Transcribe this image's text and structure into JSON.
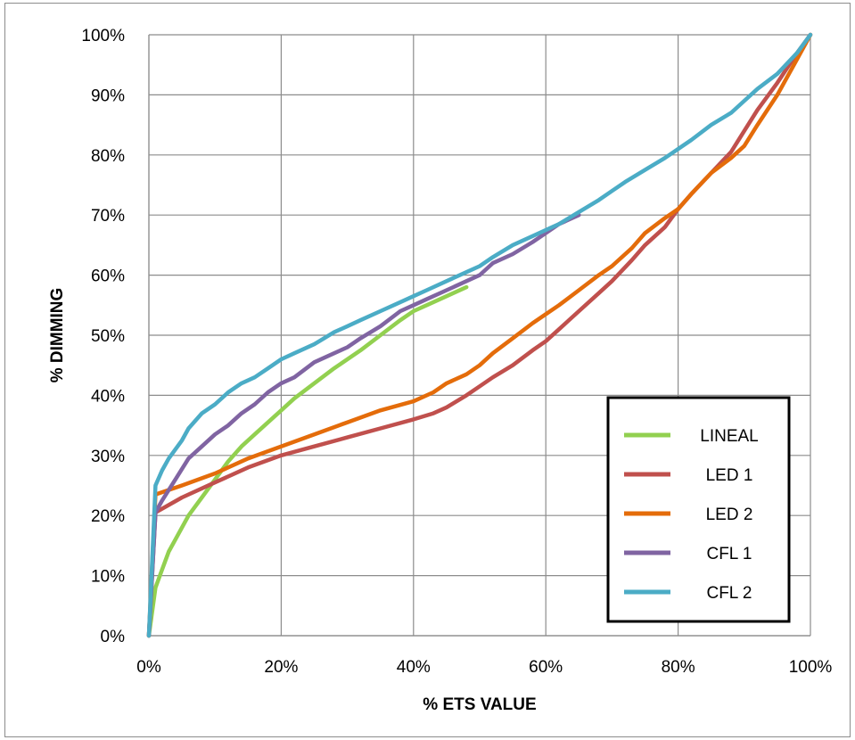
{
  "chart_data": {
    "type": "line",
    "title": "",
    "xlabel": "% ETS VALUE",
    "ylabel": "% DIMMING",
    "xlim": [
      0,
      100
    ],
    "ylim": [
      0,
      100
    ],
    "x_ticks": [
      "0%",
      "20%",
      "40%",
      "60%",
      "80%",
      "100%"
    ],
    "y_ticks": [
      "0%",
      "10%",
      "20%",
      "30%",
      "40%",
      "50%",
      "60%",
      "70%",
      "80%",
      "90%",
      "100%"
    ],
    "grid": true,
    "legend_position": "bottom-right",
    "series": [
      {
        "name": "LINEAL",
        "color": "#92d050",
        "x": [
          0,
          1,
          2,
          3,
          4,
          5,
          6,
          8,
          10,
          12,
          14,
          16,
          18,
          20,
          22,
          25,
          28,
          30,
          32,
          35,
          38,
          40,
          42,
          44,
          46,
          48
        ],
        "y": [
          0,
          8,
          11,
          14,
          16,
          18,
          20,
          23,
          26,
          29,
          31.5,
          33.5,
          35.5,
          37.5,
          39.5,
          42,
          44.5,
          46,
          47.5,
          50,
          52.5,
          54,
          55,
          56,
          57,
          58
        ]
      },
      {
        "name": "LED 1",
        "color": "#c0504d",
        "x": [
          0,
          1,
          5,
          10,
          15,
          20,
          25,
          30,
          35,
          40,
          43,
          45,
          48,
          50,
          52,
          55,
          58,
          60,
          62,
          65,
          68,
          70,
          73,
          75,
          78,
          80,
          82,
          85,
          88,
          90,
          92,
          95,
          98,
          100
        ],
        "y": [
          0,
          20.5,
          23,
          25.5,
          28,
          30,
          31.5,
          33,
          34.5,
          36,
          37,
          38,
          40,
          41.5,
          43,
          45,
          47.5,
          49,
          51,
          54,
          57,
          59,
          62.5,
          65,
          68,
          71,
          73.5,
          77,
          80.5,
          84,
          87.5,
          92,
          97,
          100
        ]
      },
      {
        "name": "LED 2",
        "color": "#e46c0a",
        "x": [
          0,
          1,
          5,
          10,
          15,
          20,
          25,
          30,
          35,
          40,
          43,
          45,
          48,
          50,
          52,
          55,
          58,
          60,
          62,
          65,
          68,
          70,
          73,
          75,
          78,
          80,
          82,
          85,
          88,
          90,
          92,
          95,
          98,
          100
        ],
        "y": [
          0,
          23.5,
          25,
          27,
          29.5,
          31.5,
          33.5,
          35.5,
          37.5,
          39,
          40.5,
          42,
          43.5,
          45,
          47,
          49.5,
          52,
          53.5,
          55,
          57.5,
          60,
          61.5,
          64.5,
          67,
          69.5,
          71,
          73.5,
          77,
          79.5,
          81.5,
          85,
          90,
          96,
          100
        ]
      },
      {
        "name": "CFL 1",
        "color": "#8064a2",
        "x": [
          0,
          1,
          2,
          4,
          6,
          8,
          10,
          12,
          14,
          16,
          18,
          20,
          22,
          25,
          28,
          30,
          32,
          35,
          38,
          40,
          42,
          45,
          48,
          50,
          52,
          55,
          58,
          60,
          62,
          65
        ],
        "y": [
          0,
          20.5,
          22.5,
          26,
          29.5,
          31.5,
          33.5,
          35,
          37,
          38.5,
          40.5,
          42,
          43,
          45.5,
          47,
          48,
          49.5,
          51.5,
          54,
          55,
          56,
          57.5,
          59,
          60,
          62,
          63.5,
          65.5,
          67,
          68.5,
          70
        ]
      },
      {
        "name": "CFL 2",
        "color": "#4bacc6",
        "x": [
          0,
          1,
          2,
          3,
          4,
          5,
          6,
          8,
          10,
          12,
          14,
          16,
          18,
          20,
          22,
          25,
          28,
          30,
          32,
          35,
          38,
          40,
          42,
          45,
          48,
          50,
          52,
          55,
          58,
          60,
          62,
          65,
          68,
          70,
          72,
          75,
          78,
          80,
          82,
          85,
          88,
          90,
          92,
          95,
          98,
          100
        ],
        "y": [
          0,
          25,
          27.5,
          29.5,
          31,
          32.5,
          34.5,
          37,
          38.5,
          40.5,
          42,
          43,
          44.5,
          46,
          47,
          48.5,
          50.5,
          51.5,
          52.5,
          54,
          55.5,
          56.5,
          57.5,
          59,
          60.5,
          61.5,
          63,
          65,
          66.5,
          67.5,
          68.5,
          70.5,
          72.5,
          74,
          75.5,
          77.5,
          79.5,
          81,
          82.5,
          85,
          87,
          89,
          91,
          93.5,
          97,
          100
        ]
      }
    ]
  }
}
